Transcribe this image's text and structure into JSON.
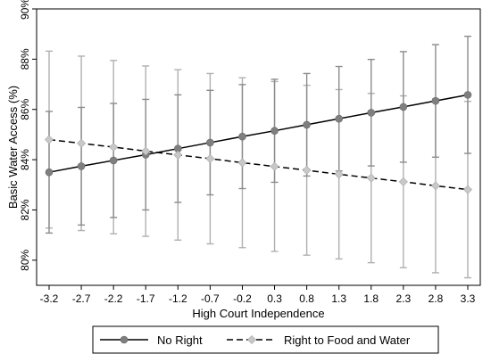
{
  "chart_data": {
    "type": "line",
    "title": "",
    "xlabel": "High Court Independence",
    "ylabel": "Basic Water Access (%)",
    "x": [
      -3.2,
      -2.7,
      -2.2,
      -1.7,
      -1.2,
      -0.7,
      -0.2,
      0.3,
      0.8,
      1.3,
      1.8,
      2.3,
      2.8,
      3.3
    ],
    "x_tick_labels": [
      "-3.2",
      "-2.7",
      "-2.2",
      "-1.7",
      "-1.2",
      "-0.7",
      "-0.2",
      "0.3",
      "0.8",
      "1.3",
      "1.8",
      "2.3",
      "2.8",
      "3.3"
    ],
    "xlim": [
      -3.2,
      3.3
    ],
    "ylim": [
      79,
      90
    ],
    "y_ticks": [
      80,
      82,
      84,
      86,
      88,
      90
    ],
    "y_tick_labels": [
      "80%",
      "82%",
      "84%",
      "86%",
      "88%",
      "90%"
    ],
    "grid": false,
    "legend_position": "bottom",
    "series": [
      {
        "name": "No Right",
        "line_style": "solid",
        "marker": "circle",
        "color": "#000000",
        "marker_color": "#7f7f7f",
        "errorbar_color": "#8c8c8c",
        "values": [
          83.5,
          83.74,
          83.97,
          84.2,
          84.44,
          84.68,
          84.92,
          85.15,
          85.39,
          85.63,
          85.87,
          86.1,
          86.34,
          86.58
        ],
        "lower": [
          81.08,
          81.4,
          81.7,
          82.0,
          82.3,
          82.6,
          82.85,
          83.1,
          83.35,
          83.55,
          83.75,
          83.9,
          84.1,
          84.25
        ],
        "upper": [
          85.92,
          86.08,
          86.24,
          86.4,
          86.58,
          86.76,
          86.99,
          87.2,
          87.43,
          87.71,
          87.99,
          88.3,
          88.58,
          88.91
        ]
      },
      {
        "name": "Right to Food and Water",
        "line_style": "dashed",
        "marker": "diamond",
        "color": "#000000",
        "marker_color": "#c8c8c8",
        "errorbar_color": "#b0b0b0",
        "values": [
          84.8,
          84.65,
          84.5,
          84.34,
          84.19,
          84.04,
          83.88,
          83.73,
          83.58,
          83.42,
          83.27,
          83.12,
          82.96,
          82.81
        ],
        "lower": [
          81.28,
          81.18,
          81.05,
          80.95,
          80.8,
          80.65,
          80.5,
          80.35,
          80.2,
          80.05,
          79.9,
          79.7,
          79.5,
          79.3
        ],
        "upper": [
          88.32,
          88.12,
          87.95,
          87.73,
          87.58,
          87.43,
          87.26,
          87.11,
          86.96,
          86.79,
          86.64,
          86.54,
          86.42,
          86.32
        ]
      }
    ]
  },
  "colors": {
    "axis": "#000000",
    "background": "#ffffff",
    "legend_border": "#000000"
  }
}
